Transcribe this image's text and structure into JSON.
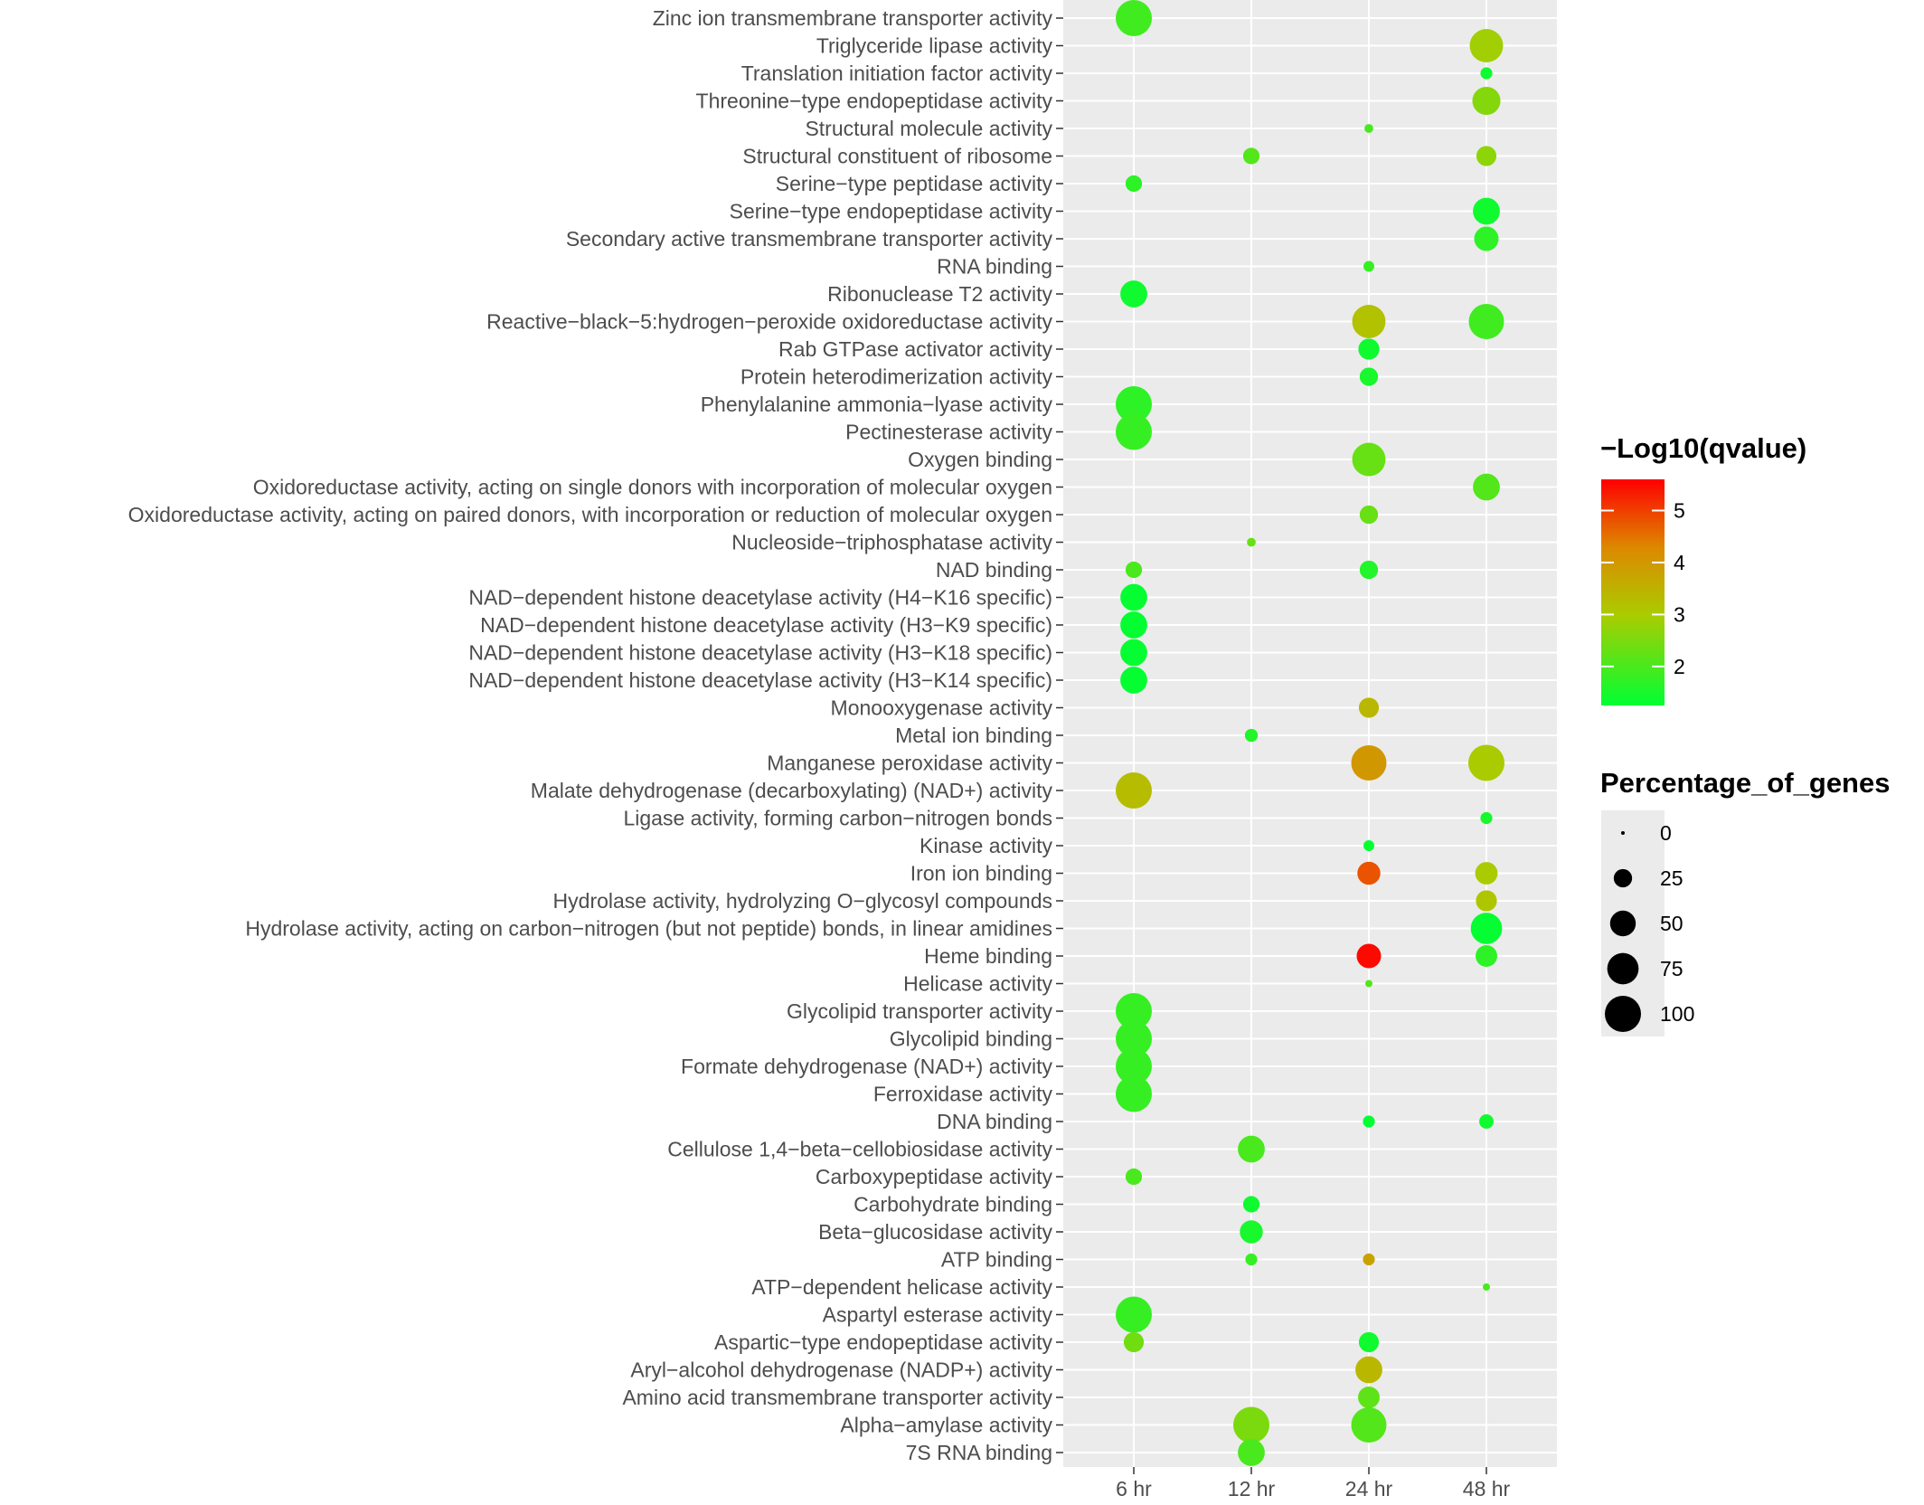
{
  "chart_data": {
    "type": "scatter",
    "x_categories": [
      "6 hr",
      "12 hr",
      "24 hr",
      "48 hr"
    ],
    "y_categories": [
      "Zinc ion transmembrane transporter activity",
      "Triglyceride lipase activity",
      "Translation initiation factor activity",
      "Threonine−type endopeptidase activity",
      "Structural molecule activity",
      "Structural constituent of ribosome",
      "Serine−type peptidase activity",
      "Serine−type endopeptidase activity",
      "Secondary active transmembrane transporter activity",
      "RNA binding",
      "Ribonuclease T2 activity",
      "Reactive−black−5:hydrogen−peroxide oxidoreductase activity",
      "Rab GTPase activator activity",
      "Protein heterodimerization activity",
      "Phenylalanine ammonia−lyase activity",
      "Pectinesterase activity",
      "Oxygen binding",
      "Oxidoreductase activity, acting on single donors with incorporation of molecular oxygen",
      "Oxidoreductase activity, acting on paired donors, with incorporation or reduction of molecular oxygen",
      "Nucleoside−triphosphatase activity",
      "NAD binding",
      "NAD−dependent histone deacetylase activity (H4−K16 specific)",
      "NAD−dependent histone deacetylase activity (H3−K9 specific)",
      "NAD−dependent histone deacetylase activity (H3−K18 specific)",
      "NAD−dependent histone deacetylase activity (H3−K14 specific)",
      "Monooxygenase activity",
      "Metal ion binding",
      "Manganese peroxidase activity",
      "Malate dehydrogenase (decarboxylating) (NAD+) activity",
      "Ligase activity, forming carbon−nitrogen bonds",
      "Kinase activity",
      "Iron ion binding",
      "Hydrolase activity, hydrolyzing O−glycosyl compounds",
      "Hydrolase activity, acting on carbon−nitrogen (but not peptide) bonds, in linear amidines",
      "Heme binding",
      "Helicase activity",
      "Glycolipid transporter activity",
      "Glycolipid binding",
      "Formate dehydrogenase (NAD+) activity",
      "Ferroxidase activity",
      "DNA binding",
      "Cellulose 1,4−beta−cellobiosidase activity",
      "Carboxypeptidase activity",
      "Carbohydrate binding",
      "Beta−glucosidase activity",
      "ATP binding",
      "ATP−dependent helicase activity",
      "Aspartyl esterase activity",
      "Aspartic−type endopeptidase activity",
      "Aryl−alcohol dehydrogenase (NADP+) activity",
      "Amino acid transmembrane transporter activity",
      "Alpha−amylase activity",
      "7S RNA binding"
    ],
    "points": [
      {
        "term": "Zinc ion transmembrane transporter activity",
        "time": "6 hr",
        "percentage": 100,
        "neg_log10_q": 1.9
      },
      {
        "term": "Triglyceride lipase activity",
        "time": "48 hr",
        "percentage": 85,
        "neg_log10_q": 2.9
      },
      {
        "term": "Translation initiation factor activity",
        "time": "48 hr",
        "percentage": 10,
        "neg_log10_q": 1.4
      },
      {
        "term": "Threonine−type endopeptidase activity",
        "time": "48 hr",
        "percentage": 60,
        "neg_log10_q": 2.6
      },
      {
        "term": "Structural molecule activity",
        "time": "24 hr",
        "percentage": 5,
        "neg_log10_q": 2.0
      },
      {
        "term": "Structural constituent of ribosome",
        "time": "12 hr",
        "percentage": 20,
        "neg_log10_q": 2.1
      },
      {
        "term": "Structural constituent of ribosome",
        "time": "48 hr",
        "percentage": 30,
        "neg_log10_q": 2.7
      },
      {
        "term": "Serine−type peptidase activity",
        "time": "6 hr",
        "percentage": 20,
        "neg_log10_q": 1.7
      },
      {
        "term": "Serine−type endopeptidase activity",
        "time": "48 hr",
        "percentage": 55,
        "neg_log10_q": 1.4
      },
      {
        "term": "Secondary active transmembrane transporter activity",
        "time": "48 hr",
        "percentage": 45,
        "neg_log10_q": 1.7
      },
      {
        "term": "RNA binding",
        "time": "24 hr",
        "percentage": 8,
        "neg_log10_q": 1.8
      },
      {
        "term": "Ribonuclease T2 activity",
        "time": "6 hr",
        "percentage": 55,
        "neg_log10_q": 1.4
      },
      {
        "term": "Reactive−black−5:hydrogen−peroxide oxidoreductase activity",
        "time": "24 hr",
        "percentage": 85,
        "neg_log10_q": 3.2
      },
      {
        "term": "Reactive−black−5:hydrogen−peroxide oxidoreductase activity",
        "time": "48 hr",
        "percentage": 95,
        "neg_log10_q": 1.9
      },
      {
        "term": "Rab GTPase activator activity",
        "time": "24 hr",
        "percentage": 33,
        "neg_log10_q": 1.4
      },
      {
        "term": "Protein heterodimerization activity",
        "time": "24 hr",
        "percentage": 25,
        "neg_log10_q": 1.5
      },
      {
        "term": "Phenylalanine ammonia−lyase activity",
        "time": "6 hr",
        "percentage": 100,
        "neg_log10_q": 1.7
      },
      {
        "term": "Pectinesterase activity",
        "time": "6 hr",
        "percentage": 100,
        "neg_log10_q": 1.8
      },
      {
        "term": "Oxygen binding",
        "time": "24 hr",
        "percentage": 85,
        "neg_log10_q": 2.3
      },
      {
        "term": "Oxidoreductase activity, acting on single donors with incorporation of molecular oxygen",
        "time": "48 hr",
        "percentage": 55,
        "neg_log10_q": 2.1
      },
      {
        "term": "Oxidoreductase activity, acting on paired donors, with incorporation or reduction of molecular oxygen",
        "time": "24 hr",
        "percentage": 25,
        "neg_log10_q": 2.3
      },
      {
        "term": "Nucleoside−triphosphatase activity",
        "time": "12 hr",
        "percentage": 5,
        "neg_log10_q": 2.3
      },
      {
        "term": "NAD binding",
        "time": "6 hr",
        "percentage": 20,
        "neg_log10_q": 2.0
      },
      {
        "term": "NAD binding",
        "time": "24 hr",
        "percentage": 25,
        "neg_log10_q": 1.6
      },
      {
        "term": "NAD−dependent histone deacetylase activity (H4−K16 specific)",
        "time": "6 hr",
        "percentage": 55,
        "neg_log10_q": 1.3
      },
      {
        "term": "NAD−dependent histone deacetylase activity (H3−K9 specific)",
        "time": "6 hr",
        "percentage": 55,
        "neg_log10_q": 1.3
      },
      {
        "term": "NAD−dependent histone deacetylase activity (H3−K18 specific)",
        "time": "6 hr",
        "percentage": 55,
        "neg_log10_q": 1.3
      },
      {
        "term": "NAD−dependent histone deacetylase activity (H3−K14 specific)",
        "time": "6 hr",
        "percentage": 55,
        "neg_log10_q": 1.3
      },
      {
        "term": "Monooxygenase activity",
        "time": "24 hr",
        "percentage": 30,
        "neg_log10_q": 3.4
      },
      {
        "term": "Metal ion binding",
        "time": "12 hr",
        "percentage": 12,
        "neg_log10_q": 1.6
      },
      {
        "term": "Manganese peroxidase activity",
        "time": "24 hr",
        "percentage": 95,
        "neg_log10_q": 4.0
      },
      {
        "term": "Manganese peroxidase activity",
        "time": "48 hr",
        "percentage": 100,
        "neg_log10_q": 3.0
      },
      {
        "term": "Malate dehydrogenase (decarboxylating) (NAD+) activity",
        "time": "6 hr",
        "percentage": 100,
        "neg_log10_q": 3.3
      },
      {
        "term": "Ligase activity, forming carbon−nitrogen bonds",
        "time": "48 hr",
        "percentage": 10,
        "neg_log10_q": 1.5
      },
      {
        "term": "Kinase activity",
        "time": "24 hr",
        "percentage": 8,
        "neg_log10_q": 1.3
      },
      {
        "term": "Iron ion binding",
        "time": "24 hr",
        "percentage": 40,
        "neg_log10_q": 4.8
      },
      {
        "term": "Iron ion binding",
        "time": "48 hr",
        "percentage": 38,
        "neg_log10_q": 3.0
      },
      {
        "term": "Hydrolase activity, hydrolyzing O−glycosyl compounds",
        "time": "48 hr",
        "percentage": 33,
        "neg_log10_q": 3.1
      },
      {
        "term": "Hydrolase activity, acting on carbon−nitrogen (but not peptide) bonds, in linear amidines",
        "time": "48 hr",
        "percentage": 75,
        "neg_log10_q": 1.3
      },
      {
        "term": "Heme binding",
        "time": "24 hr",
        "percentage": 45,
        "neg_log10_q": 5.5
      },
      {
        "term": "Heme binding",
        "time": "48 hr",
        "percentage": 35,
        "neg_log10_q": 1.7
      },
      {
        "term": "Helicase activity",
        "time": "24 hr",
        "percentage": 3,
        "neg_log10_q": 2.1
      },
      {
        "term": "Glycolipid transporter activity",
        "time": "6 hr",
        "percentage": 100,
        "neg_log10_q": 1.8
      },
      {
        "term": "Glycolipid binding",
        "time": "6 hr",
        "percentage": 100,
        "neg_log10_q": 1.8
      },
      {
        "term": "Formate dehydrogenase (NAD+) activity",
        "time": "6 hr",
        "percentage": 100,
        "neg_log10_q": 1.8
      },
      {
        "term": "Ferroxidase activity",
        "time": "6 hr",
        "percentage": 100,
        "neg_log10_q": 1.8
      },
      {
        "term": "DNA binding",
        "time": "24 hr",
        "percentage": 10,
        "neg_log10_q": 1.3
      },
      {
        "term": "DNA binding",
        "time": "48 hr",
        "percentage": 15,
        "neg_log10_q": 1.4
      },
      {
        "term": "Cellulose 1,4−beta−cellobiosidase activity",
        "time": "12 hr",
        "percentage": 55,
        "neg_log10_q": 2.0
      },
      {
        "term": "Carboxypeptidase activity",
        "time": "6 hr",
        "percentage": 20,
        "neg_log10_q": 2.0
      },
      {
        "term": "Carbohydrate binding",
        "time": "12 hr",
        "percentage": 20,
        "neg_log10_q": 1.4
      },
      {
        "term": "Beta−glucosidase activity",
        "time": "12 hr",
        "percentage": 40,
        "neg_log10_q": 1.5
      },
      {
        "term": "ATP binding",
        "time": "12 hr",
        "percentage": 10,
        "neg_log10_q": 1.8
      },
      {
        "term": "ATP binding",
        "time": "24 hr",
        "percentage": 10,
        "neg_log10_q": 3.8
      },
      {
        "term": "ATP−dependent helicase activity",
        "time": "48 hr",
        "percentage": 3,
        "neg_log10_q": 2.0
      },
      {
        "term": "Aspartyl esterase activity",
        "time": "6 hr",
        "percentage": 100,
        "neg_log10_q": 1.8
      },
      {
        "term": "Aspartic−type endopeptidase activity",
        "time": "6 hr",
        "percentage": 30,
        "neg_log10_q": 2.4
      },
      {
        "term": "Aspartic−type endopeptidase activity",
        "time": "24 hr",
        "percentage": 30,
        "neg_log10_q": 1.4
      },
      {
        "term": "Aryl−alcohol dehydrogenase (NADP+) activity",
        "time": "24 hr",
        "percentage": 55,
        "neg_log10_q": 3.4
      },
      {
        "term": "Amino acid transmembrane transporter activity",
        "time": "24 hr",
        "percentage": 35,
        "neg_log10_q": 2.2
      },
      {
        "term": "Alpha−amylase activity",
        "time": "12 hr",
        "percentage": 100,
        "neg_log10_q": 2.5
      },
      {
        "term": "Alpha−amylase activity",
        "time": "24 hr",
        "percentage": 95,
        "neg_log10_q": 2.1
      },
      {
        "term": "7S RNA binding",
        "time": "12 hr",
        "percentage": 55,
        "neg_log10_q": 2.0
      }
    ],
    "color_legend": {
      "title": "−Log10(qvalue)",
      "ticks": [
        "2",
        "3",
        "4",
        "5"
      ],
      "range": [
        1.25,
        5.6
      ],
      "low_color": "#00ff33",
      "mid_color": "#aacc00",
      "high_color": "#ff0000"
    },
    "size_legend": {
      "title": "Percentage_of_genes",
      "ticks": [
        "0",
        "25",
        "50",
        "75",
        "100"
      ]
    },
    "grid": true,
    "legend_position": "right"
  }
}
